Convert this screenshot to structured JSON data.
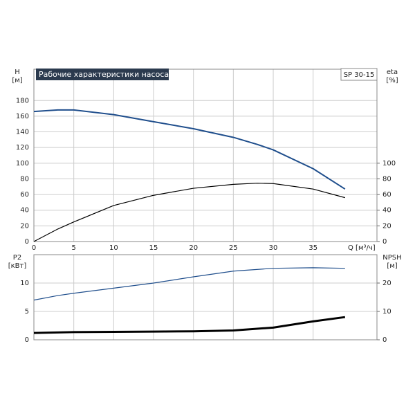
{
  "chart_data": [
    {
      "type": "line",
      "title": "Рабочие характеристики насоса",
      "model": "SP 30-15",
      "ylabel": [
        "H",
        "[м]"
      ],
      "y2label": [
        "eta",
        "[%]"
      ],
      "xlabel": "Q [м³/ч]",
      "x": [
        0,
        3,
        5,
        10,
        15,
        20,
        25,
        28,
        30,
        35,
        39
      ],
      "xlim": [
        0,
        43
      ],
      "xticks": [
        0,
        5,
        10,
        15,
        20,
        25,
        30,
        35
      ],
      "show_xtick_labels": true,
      "ylim": [
        0,
        220
      ],
      "yticks": [
        0,
        20,
        40,
        60,
        80,
        100,
        120,
        140,
        160,
        180
      ],
      "y2lim": [
        0,
        220
      ],
      "y2ticks": [
        0,
        20,
        40,
        60,
        80,
        100
      ],
      "grid": true,
      "series": [
        {
          "name": "H",
          "color": "#1f4e8c",
          "values": [
            166,
            168,
            168,
            162,
            153,
            144,
            133,
            124,
            117,
            93,
            67
          ]
        },
        {
          "name": "eta",
          "color": "#000000",
          "axis": "y2",
          "values": [
            0,
            16,
            25,
            46,
            59,
            68,
            73,
            74.5,
            74,
            67,
            56
          ]
        }
      ]
    },
    {
      "type": "line",
      "ylabel": [
        "P2",
        "[кВт]"
      ],
      "y2label": [
        "NPSH",
        "[м]"
      ],
      "x": [
        0,
        3,
        5,
        10,
        15,
        20,
        25,
        30,
        35,
        39
      ],
      "xlim": [
        0,
        43
      ],
      "xticks": [
        0,
        5,
        10,
        15,
        20,
        25,
        30,
        35
      ],
      "show_xtick_labels": false,
      "ylim": [
        0,
        15
      ],
      "yticks": [
        0,
        5,
        10
      ],
      "y2lim": [
        0,
        30
      ],
      "y2ticks": [
        0,
        10,
        20
      ],
      "grid": true,
      "series": [
        {
          "name": "P2",
          "color": "#1f4e8c",
          "values": [
            7,
            7.8,
            8.2,
            9.1,
            10,
            11.1,
            12.1,
            12.6,
            12.7,
            12.6
          ]
        },
        {
          "name": "NPSH",
          "color": "#000000",
          "axis": "y2",
          "values": [
            2.4,
            2.6,
            2.7,
            2.8,
            2.9,
            3.0,
            3.3,
            4.3,
            6.5,
            8.0
          ]
        }
      ]
    }
  ]
}
